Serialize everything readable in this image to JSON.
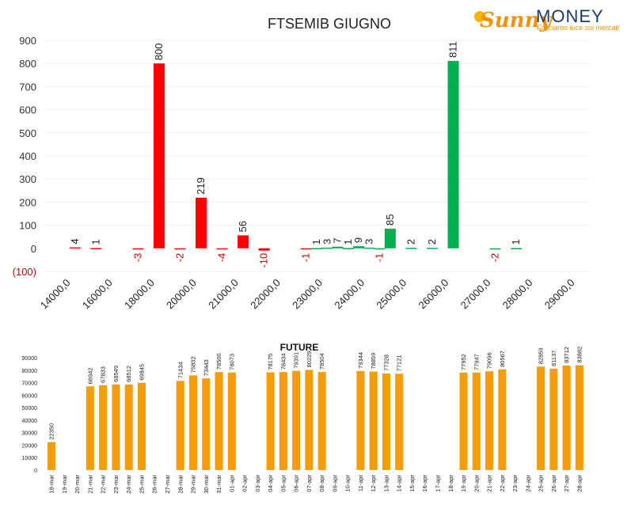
{
  "logo": {
    "brand_sunny": "Sunny",
    "brand_money": "MONEY",
    "tagline": "Facciamo luce sui mercati"
  },
  "colors": {
    "negative": "#ff0000",
    "positive": "#00b050",
    "future": "#f59c0b",
    "axis_text": "#333333",
    "neg_text": "#cc0000"
  },
  "chart_data": [
    {
      "type": "bar",
      "title": "FTSEMIB GIUGNO",
      "ylim": [
        -100,
        900
      ],
      "yticks": [
        900,
        800,
        700,
        600,
        500,
        400,
        300,
        200,
        100,
        0,
        -100
      ],
      "ytick_labels": [
        "900",
        "800",
        "700",
        "600",
        "500",
        "400",
        "300",
        "200",
        "100",
        "0",
        "(100)"
      ],
      "categories": [
        "14000,0",
        "16000,0",
        "18000,0",
        "20000,0",
        "21000,0",
        "22000,0",
        "23000,0",
        "24000,0",
        "25000,0",
        "26000,0",
        "27000,0",
        "28000,0",
        "29000,0"
      ],
      "grid": true,
      "bars": [
        {
          "x": 1.5,
          "value": 4,
          "label": "4",
          "color": "red"
        },
        {
          "x": 2.5,
          "value": 1,
          "label": "1",
          "color": "red"
        },
        {
          "x": 4.5,
          "value": -3,
          "label": "-3",
          "color": "red"
        },
        {
          "x": 5.5,
          "value": 800,
          "label": "800",
          "color": "red"
        },
        {
          "x": 6.5,
          "value": -2,
          "label": "-2",
          "color": "red"
        },
        {
          "x": 7.5,
          "value": 219,
          "label": "219",
          "color": "red"
        },
        {
          "x": 8.5,
          "value": -4,
          "label": "-4",
          "color": "red"
        },
        {
          "x": 9.5,
          "value": 56,
          "label": "56",
          "color": "red"
        },
        {
          "x": 10.5,
          "value": -10,
          "label": "-10",
          "color": "red"
        },
        {
          "x": 12.5,
          "value": -1,
          "label": "-1",
          "color": "red"
        },
        {
          "x": 13.0,
          "value": 1,
          "label": "1",
          "color": "green"
        },
        {
          "x": 13.5,
          "value": 3,
          "label": "3",
          "color": "green"
        },
        {
          "x": 14.0,
          "value": 7,
          "label": "7",
          "color": "green"
        },
        {
          "x": 14.5,
          "value": 1,
          "label": "1",
          "color": "green"
        },
        {
          "x": 15.0,
          "value": 9,
          "label": "9",
          "color": "green"
        },
        {
          "x": 15.5,
          "value": 3,
          "label": "3",
          "color": "green"
        },
        {
          "x": 16.0,
          "value": -1,
          "label": "-1",
          "color": "green"
        },
        {
          "x": 16.5,
          "value": 85,
          "label": "85",
          "color": "green"
        },
        {
          "x": 17.5,
          "value": 2,
          "label": "2",
          "color": "green"
        },
        {
          "x": 18.5,
          "value": 2,
          "label": "2",
          "color": "green"
        },
        {
          "x": 19.5,
          "value": 811,
          "label": "811",
          "color": "green"
        },
        {
          "x": 21.5,
          "value": -2,
          "label": "-2",
          "color": "green"
        },
        {
          "x": 22.5,
          "value": 1,
          "label": "1",
          "color": "green"
        }
      ]
    },
    {
      "type": "bar",
      "title": "FUTURE",
      "ylim": [
        0,
        90000
      ],
      "yticks": [
        90000,
        80000,
        70000,
        60000,
        50000,
        40000,
        30000,
        20000,
        10000,
        0
      ],
      "categories": [
        "18-mar",
        "19-mar",
        "20-mar",
        "21-mar",
        "22-mar",
        "23-mar",
        "24-mar",
        "25-mar",
        "26-mar",
        "27-mar",
        "28-mar",
        "29-mar",
        "30-mar",
        "31-mar",
        "01-apr",
        "02-apr",
        "03-apr",
        "04-apr",
        "05-apr",
        "06-apr",
        "07-apr",
        "08-apr",
        "09-apr",
        "10-apr",
        "11-apr",
        "12-apr",
        "13-apr",
        "14-apr",
        "15-apr",
        "16-apr",
        "17-apr",
        "18-apr",
        "19-apr",
        "20-apr",
        "21-apr",
        "22-apr",
        "23-apr",
        "24-apr",
        "25-apr",
        "26-apr",
        "27-apr",
        "28-apr"
      ],
      "values": [
        22350,
        null,
        null,
        66942,
        67833,
        68549,
        68512,
        69845,
        null,
        null,
        71434,
        75832,
        73443,
        78500,
        78073,
        null,
        null,
        78175,
        78434,
        79391,
        80229,
        78504,
        null,
        null,
        79344,
        78859,
        77328,
        77121,
        null,
        null,
        null,
        null,
        77952,
        77947,
        79096,
        80567,
        null,
        null,
        82859,
        81137,
        83712,
        83882
      ]
    }
  ]
}
